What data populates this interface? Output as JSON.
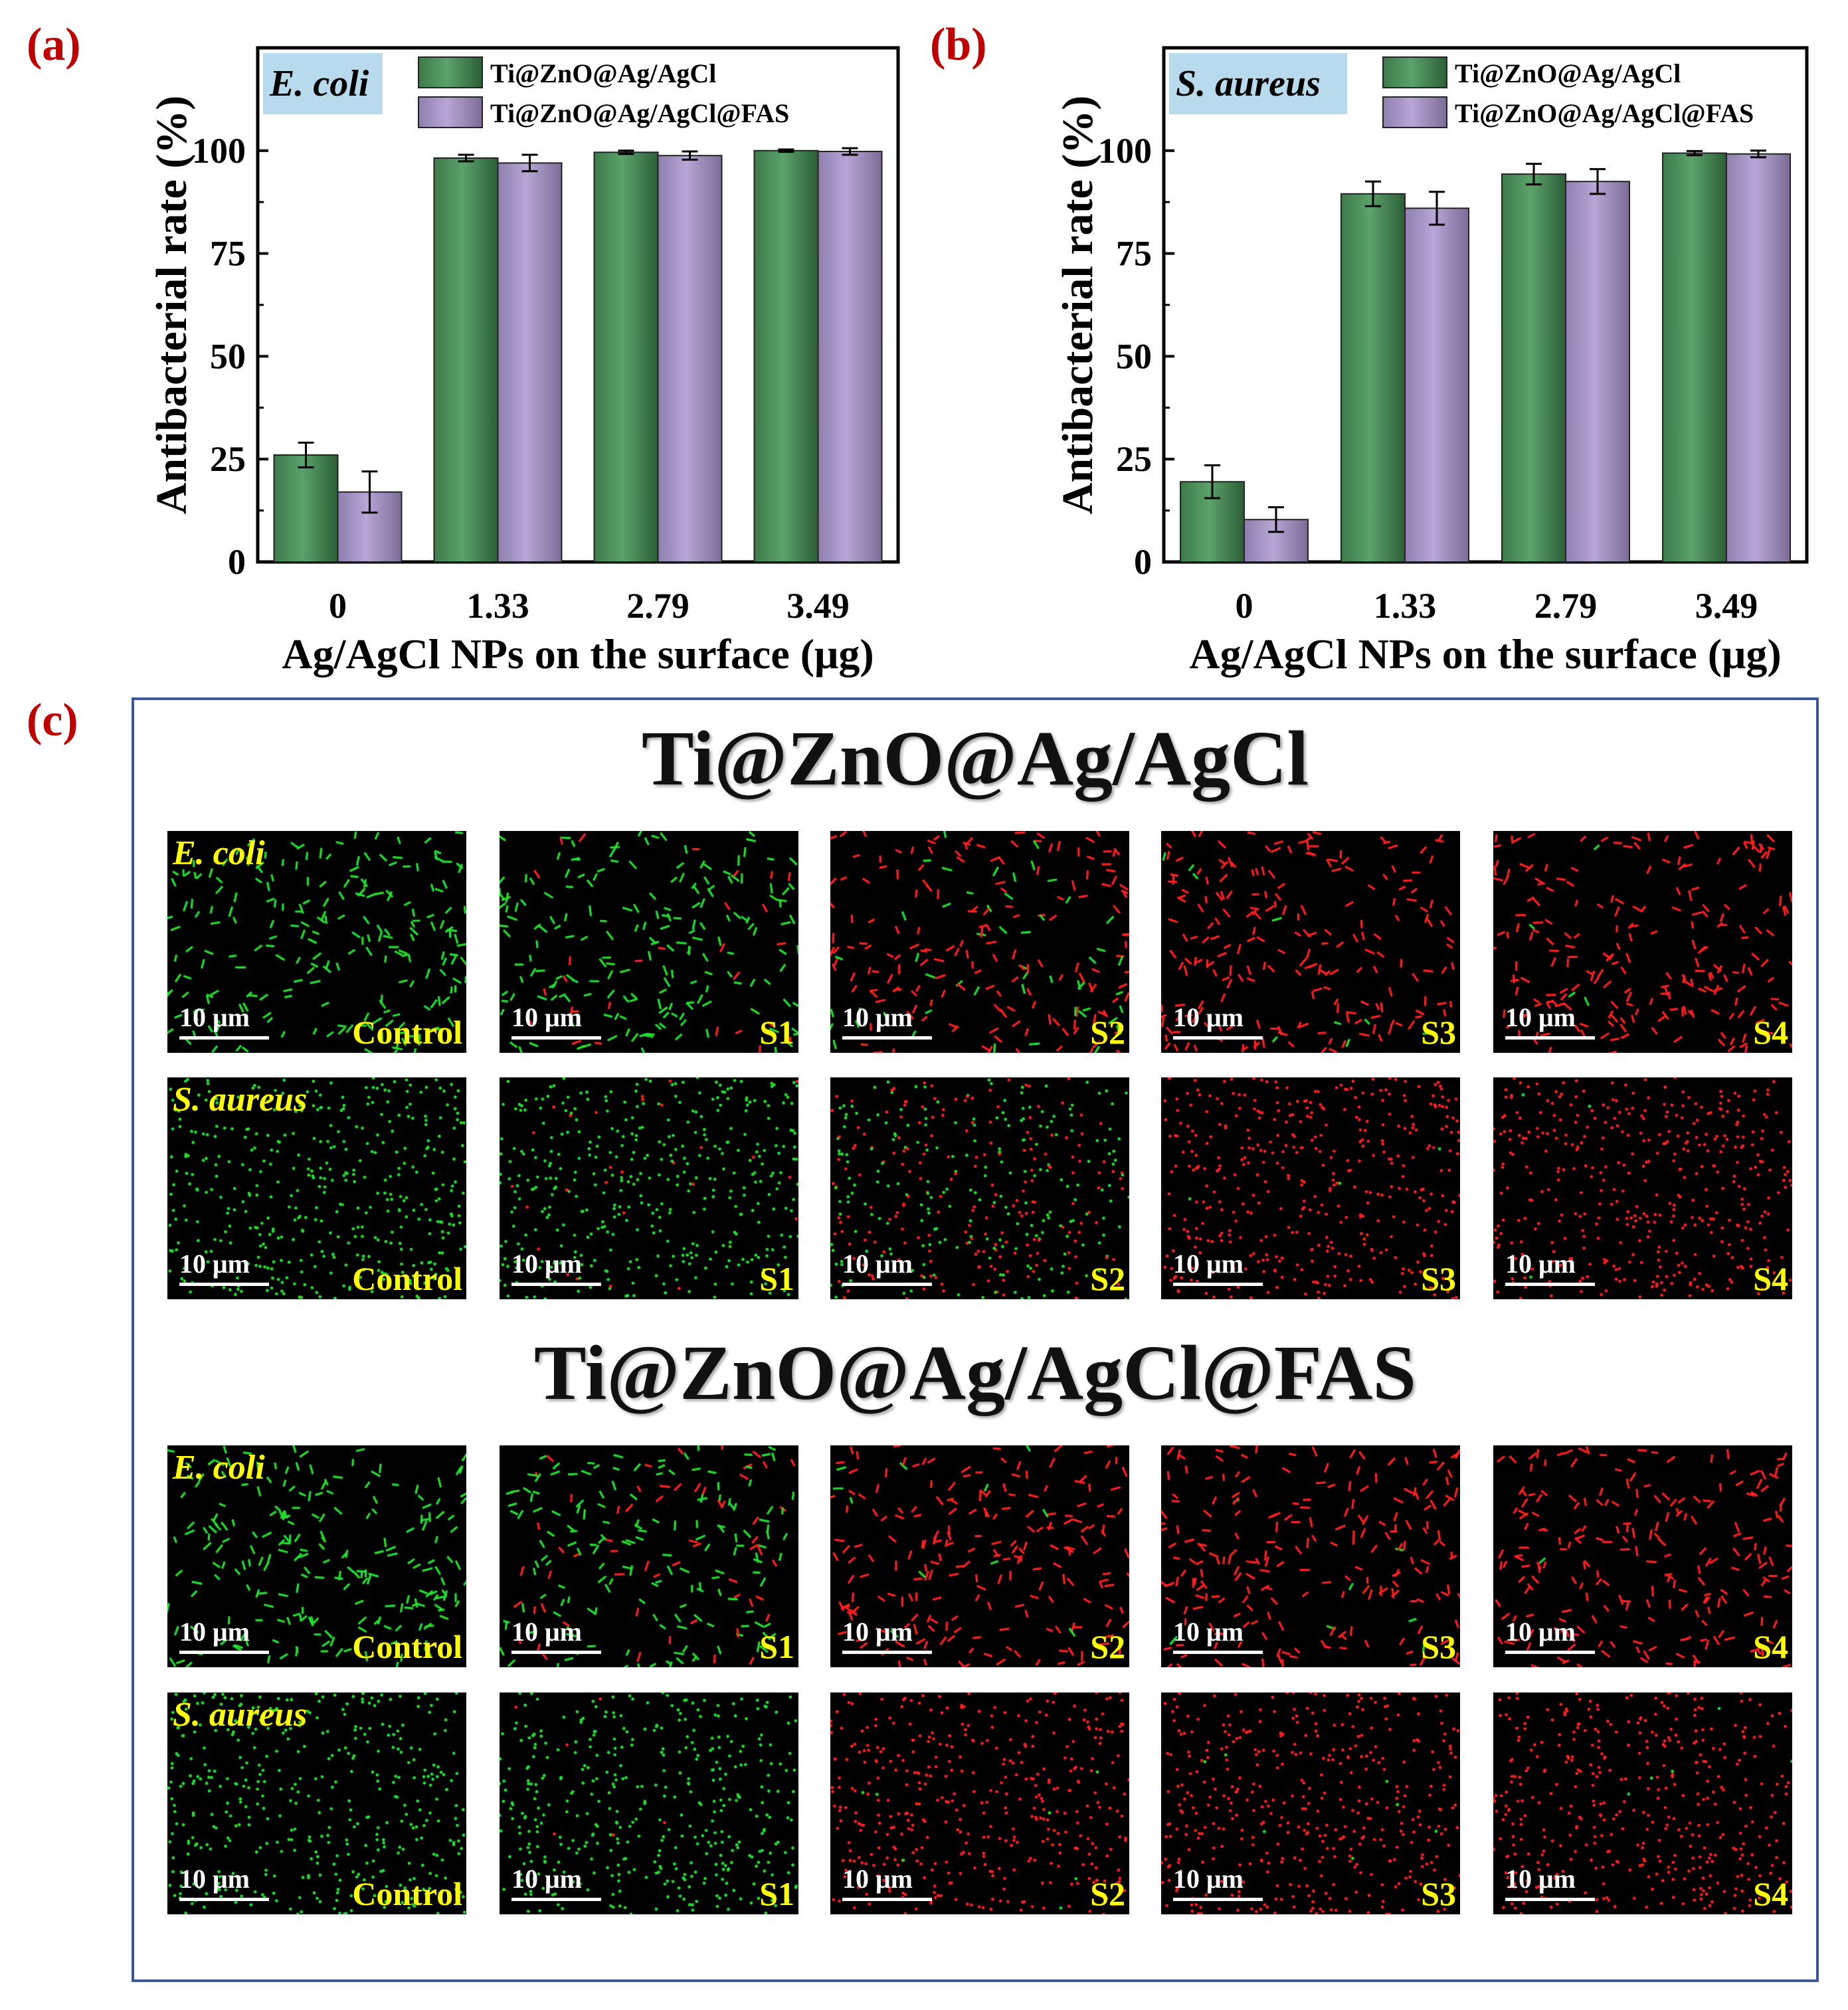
{
  "panels": {
    "a": "(a)",
    "b": "(b)",
    "c": "(c)"
  },
  "colors": {
    "series1": "#5aa26a",
    "series2": "#b7a6d6",
    "label_red": "#c00000",
    "species_box": "#b7dbed"
  },
  "chart_data": [
    {
      "type": "bar",
      "species": "E. coli",
      "categories": [
        "0",
        "1.33",
        "2.79",
        "3.49"
      ],
      "series": [
        {
          "name": "Ti@ZnO@Ag/AgCl",
          "values": [
            26,
            98.2,
            99.6,
            100
          ],
          "errors": [
            3,
            0.8,
            0.4,
            0.3
          ]
        },
        {
          "name": "Ti@ZnO@Ag/AgCl@FAS",
          "values": [
            17,
            97,
            98.8,
            99.8
          ],
          "errors": [
            5,
            2,
            1,
            0.8
          ]
        }
      ],
      "xlabel": "Ag/AgCl NPs on the surface (μg)",
      "ylabel": "Antibacterial rate (%)",
      "ylim": [
        0,
        125
      ],
      "yticks": [
        "0",
        "25",
        "50",
        "75",
        "100"
      ],
      "legend": "top-right"
    },
    {
      "type": "bar",
      "species": "S. aureus",
      "categories": [
        "0",
        "1.33",
        "2.79",
        "3.49"
      ],
      "series": [
        {
          "name": "Ti@ZnO@Ag/AgCl",
          "values": [
            19.5,
            89.5,
            94.3,
            99.4
          ],
          "errors": [
            4,
            3,
            2.5,
            0.5
          ]
        },
        {
          "name": "Ti@ZnO@Ag/AgCl@FAS",
          "values": [
            10.3,
            86,
            92.5,
            99.2
          ],
          "errors": [
            3,
            4,
            3,
            0.8
          ]
        }
      ],
      "xlabel": "Ag/AgCl NPs on the surface (μg)",
      "ylabel": "Antibacterial rate (%)",
      "ylim": [
        0,
        125
      ],
      "yticks": [
        "0",
        "25",
        "50",
        "75",
        "100"
      ],
      "legend": "top-right"
    }
  ],
  "micrographs": {
    "groups": [
      {
        "title": "Ti@ZnO@Ag/AgCl",
        "rows": [
          {
            "species": "E. coli",
            "shape": "rod",
            "dead_fractions": [
              0.0,
              0.12,
              0.75,
              0.97,
              0.99
            ]
          },
          {
            "species": "S. aureus",
            "shape": "coccus",
            "dead_fractions": [
              0.0,
              0.05,
              0.5,
              0.98,
              0.99
            ]
          }
        ]
      },
      {
        "title": "Ti@ZnO@Ag/AgCl@FAS",
        "rows": [
          {
            "species": "E. coli",
            "shape": "rod",
            "dead_fractions": [
              0.0,
              0.3,
              0.95,
              0.97,
              0.99
            ]
          },
          {
            "species": "S. aureus",
            "shape": "coccus",
            "dead_fractions": [
              0.0,
              0.02,
              0.97,
              0.98,
              0.99
            ]
          }
        ]
      }
    ],
    "sample_labels": [
      "Control",
      "S1",
      "S2",
      "S3",
      "S4"
    ],
    "scale_bar_label": "10 μm",
    "live_color": "#22e030",
    "dead_color": "#ff2020"
  }
}
